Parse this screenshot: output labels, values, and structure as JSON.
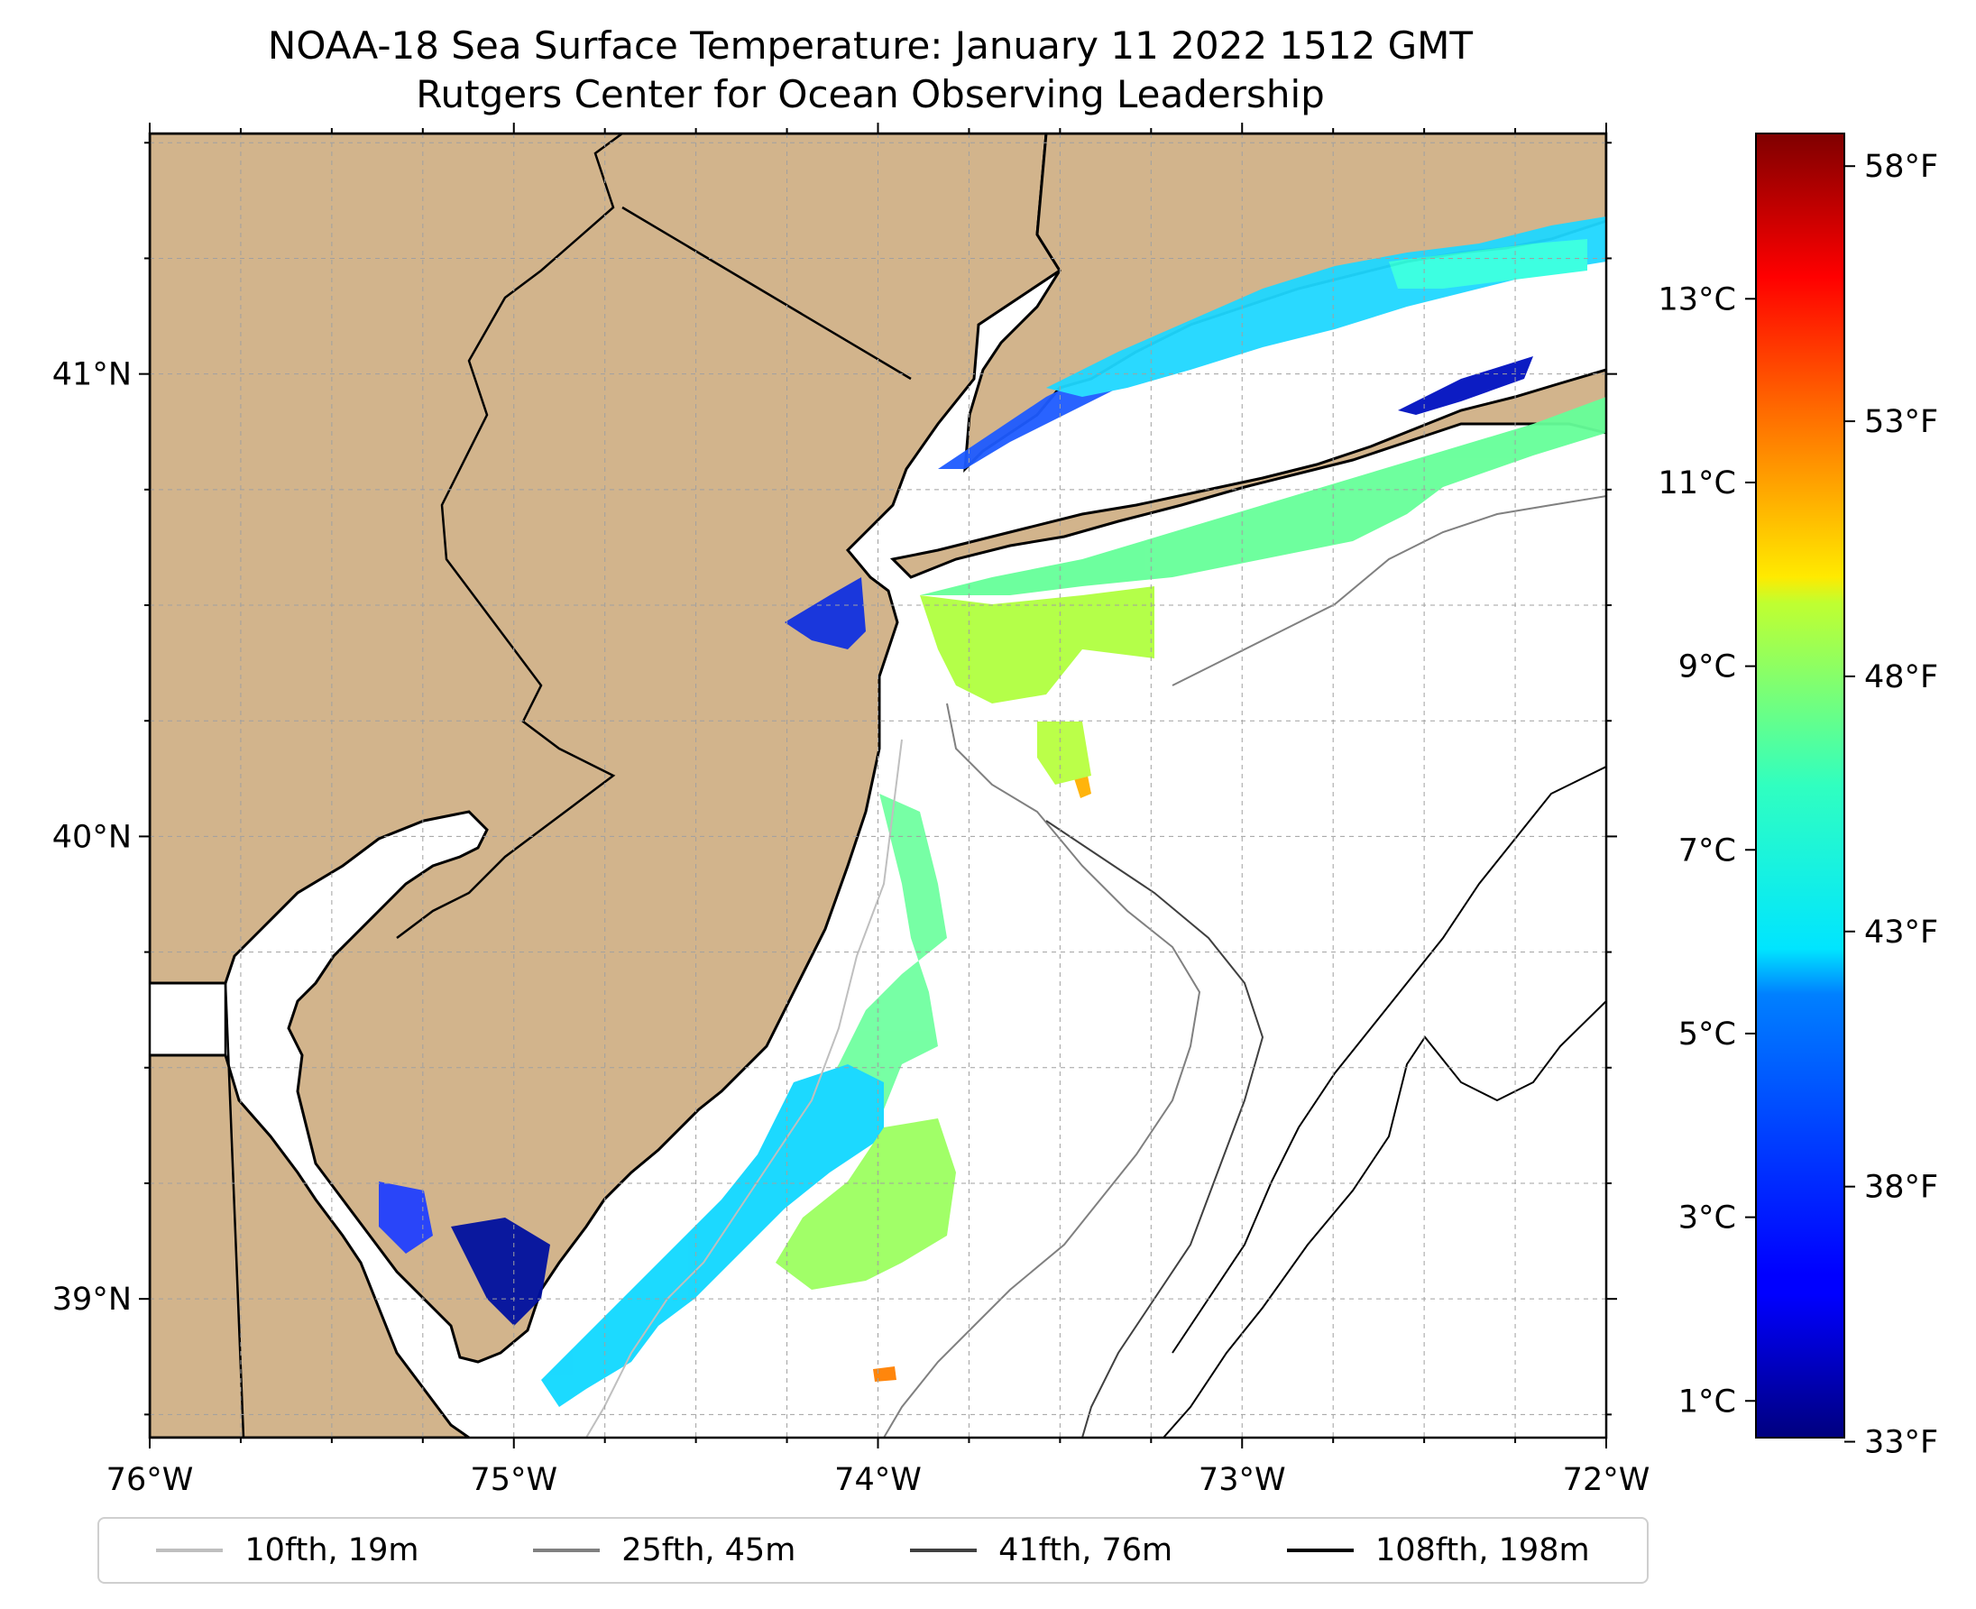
{
  "title": {
    "line1": "NOAA-18 Sea Surface Temperature: January 11 2022 1512 GMT",
    "line2": "Rutgers Center for Ocean Observing Leadership"
  },
  "map": {
    "lon_range": [
      -76,
      -72
    ],
    "lat_range": [
      38.7,
      41.52
    ],
    "lon_ticks": [
      -76,
      -75,
      -74,
      -73,
      -72
    ],
    "lon_tick_labels": [
      "76°W",
      "75°W",
      "74°W",
      "73°W",
      "72°W"
    ],
    "lat_ticks": [
      39,
      40,
      41
    ],
    "lat_tick_labels": [
      "39°N",
      "40°N",
      "41°N"
    ],
    "land_color": "#d2b48c",
    "water_color": "#ffffff",
    "grid": true
  },
  "colorbar": {
    "colormap": "jet",
    "celsius_range": [
      0.6,
      14.8
    ],
    "celsius_ticks": [
      1,
      3,
      5,
      7,
      9,
      11,
      13
    ],
    "celsius_labels": [
      "1°C",
      "3°C",
      "5°C",
      "7°C",
      "9°C",
      "11°C",
      "13°C"
    ],
    "fahrenheit_ticks": [
      33,
      38,
      43,
      48,
      53,
      58
    ],
    "fahrenheit_labels": [
      "33°F",
      "38°F",
      "43°F",
      "48°F",
      "53°F",
      "58°F"
    ]
  },
  "legend": {
    "items": [
      {
        "label": "10fth, 19m",
        "color": "#bfbfbf"
      },
      {
        "label": "25fth, 45m",
        "color": "#808080"
      },
      {
        "label": "41fth, 76m",
        "color": "#404040"
      },
      {
        "label": "108fth, 198m",
        "color": "#000000"
      }
    ]
  },
  "colors": {
    "coast_line": "#000000",
    "grid_line": "#a0a0a0"
  }
}
